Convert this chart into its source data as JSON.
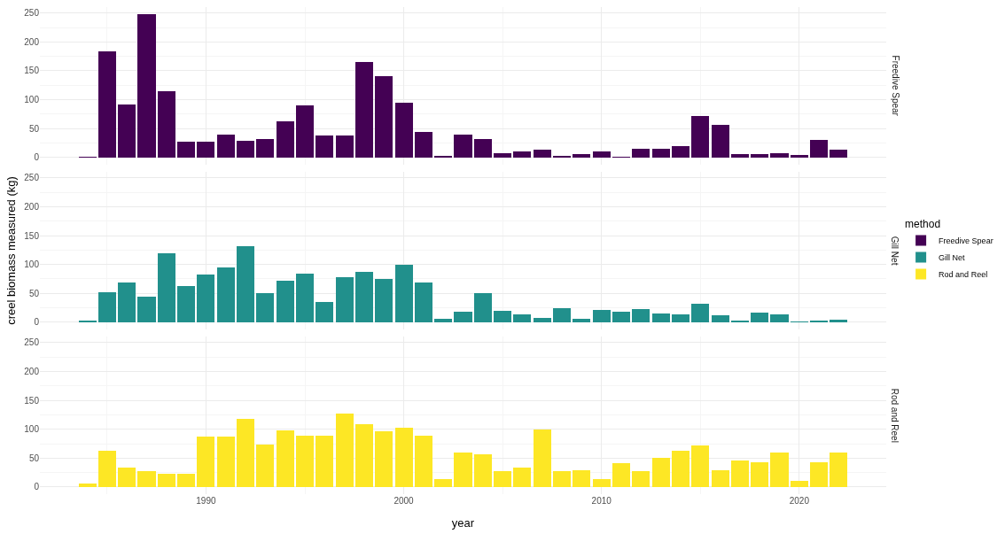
{
  "chart_data": [
    {
      "type": "bar",
      "x": [
        1984,
        1985,
        1986,
        1987,
        1988,
        1989,
        1990,
        1991,
        1992,
        1993,
        1994,
        1995,
        1996,
        1997,
        1998,
        1999,
        2000,
        2001,
        2002,
        2003,
        2004,
        2005,
        2006,
        2007,
        2008,
        2009,
        2010,
        2011,
        2012,
        2013,
        2014,
        2015,
        2016,
        2017,
        2018,
        2019,
        2020,
        2021,
        2022
      ],
      "series": [
        {
          "name": "Freedive Spear",
          "color": "#440154",
          "values": [
            1,
            183,
            92,
            248,
            114,
            28,
            28,
            39,
            29,
            32,
            62,
            90,
            38,
            38,
            166,
            140,
            95,
            44,
            2,
            40,
            32,
            7,
            10,
            13,
            2,
            5,
            11,
            1,
            15,
            15,
            19,
            71,
            57,
            6,
            6,
            7,
            4,
            30,
            14
          ]
        }
      ],
      "xlim": [
        1981.6,
        2024.4
      ],
      "xticks": [
        1990,
        2000,
        2010,
        2020
      ],
      "ylim": [
        -12.4,
        260.4
      ],
      "yticks": [
        0,
        50,
        100,
        150,
        200,
        250
      ],
      "grid": true,
      "legend": "right",
      "tick_labels": "y"
    },
    {
      "type": "bar",
      "ylabel": "creel biomass measured (kg)",
      "legend_title": "method",
      "x": [
        1984,
        1985,
        1986,
        1987,
        1988,
        1989,
        1990,
        1991,
        1992,
        1993,
        1994,
        1995,
        1996,
        1997,
        1998,
        1999,
        2000,
        2001,
        2002,
        2003,
        2004,
        2005,
        2006,
        2007,
        2008,
        2009,
        2010,
        2011,
        2012,
        2013,
        2014,
        2015,
        2016,
        2017,
        2018,
        2019,
        2020,
        2021,
        2022
      ],
      "series": [
        {
          "name": "Gill Net",
          "color": "#21908c",
          "values": [
            3,
            52,
            69,
            44,
            120,
            62,
            83,
            94,
            132,
            50,
            72,
            84,
            35,
            78,
            87,
            75,
            100,
            69,
            6,
            18,
            51,
            20,
            13,
            7,
            24,
            5,
            21,
            18,
            22,
            15,
            13,
            32,
            12,
            3,
            16,
            14,
            1,
            2,
            4
          ]
        }
      ],
      "xlim": [
        1981.6,
        2024.4
      ],
      "xticks": [
        1990,
        2000,
        2010,
        2020
      ],
      "ylim": [
        -12.4,
        260.4
      ],
      "yticks": [
        0,
        50,
        100,
        150,
        200,
        250
      ],
      "grid": true,
      "legend": "right",
      "tick_labels": "y"
    },
    {
      "type": "bar",
      "xlabel": "year",
      "x": [
        1984,
        1985,
        1986,
        1987,
        1988,
        1989,
        1990,
        1991,
        1992,
        1993,
        1994,
        1995,
        1996,
        1997,
        1998,
        1999,
        2000,
        2001,
        2002,
        2003,
        2004,
        2005,
        2006,
        2007,
        2008,
        2009,
        2010,
        2011,
        2012,
        2013,
        2014,
        2015,
        2016,
        2017,
        2018,
        2019,
        2020,
        2021,
        2022
      ],
      "series": [
        {
          "name": "Rod and Reel",
          "color": "#fde725",
          "values": [
            6,
            62,
            34,
            28,
            22,
            23,
            87,
            87,
            118,
            73,
            98,
            88,
            88,
            127,
            109,
            97,
            103,
            88,
            13,
            59,
            56,
            27,
            34,
            100,
            28,
            29,
            13,
            41,
            28,
            50,
            63,
            71,
            29,
            46,
            43,
            59,
            10,
            43,
            60
          ]
        }
      ],
      "xlim": [
        1981.6,
        2024.4
      ],
      "xticks": [
        1990,
        2000,
        2010,
        2020
      ],
      "ylim": [
        -12.4,
        260.4
      ],
      "yticks": [
        0,
        50,
        100,
        150,
        200,
        250
      ],
      "grid": true,
      "legend": "right"
    }
  ]
}
